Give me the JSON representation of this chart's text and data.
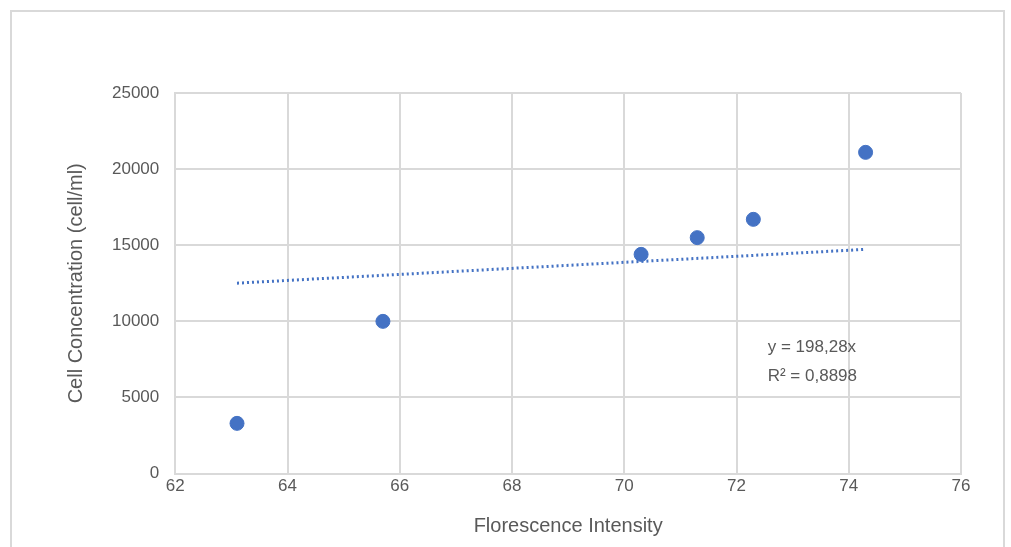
{
  "chart_data": {
    "type": "scatter",
    "xlabel": "Florescence Intensity",
    "ylabel": "Cell Concentration (cell/ml)",
    "xlim": [
      62,
      76
    ],
    "xticks": [
      62,
      64,
      66,
      68,
      70,
      72,
      74,
      76
    ],
    "ylim": [
      0,
      25000
    ],
    "yticks": [
      0,
      5000,
      10000,
      15000,
      20000,
      25000
    ],
    "grid": true,
    "legend": false,
    "series": [
      {
        "color": "#4472c4",
        "marker": "circle",
        "x": [
          63.1,
          65.7,
          70.3,
          71.3,
          72.3,
          74.3
        ],
        "values": [
          3300,
          10000,
          14400,
          15500,
          16700,
          21100
        ]
      },
      {
        "type": "line",
        "color": "#4472c4",
        "marker": "none",
        "line_style": "dotted",
        "x": [
          63.1,
          74.3
        ],
        "values": [
          12510,
          14730
        ]
      }
    ],
    "annotations": [
      "y = 198,28x",
      "R² = 0,8898"
    ]
  }
}
